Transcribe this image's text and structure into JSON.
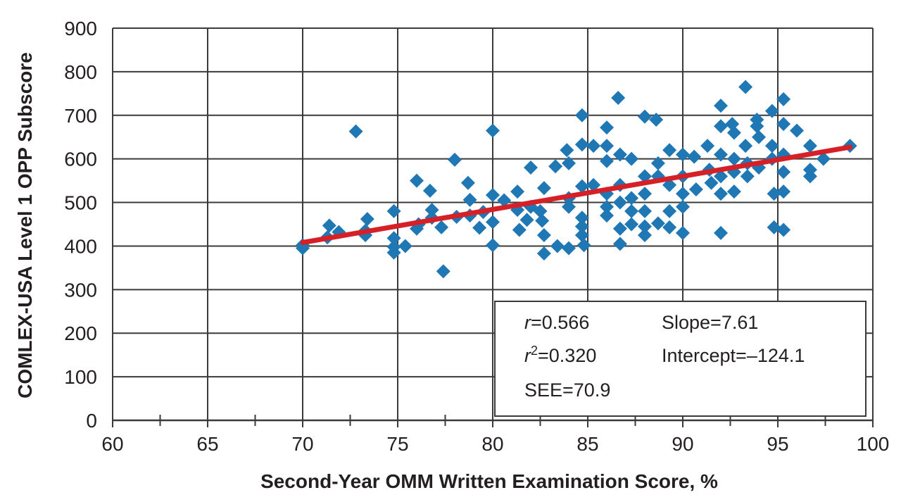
{
  "chart_data": {
    "type": "scatter",
    "title": "",
    "xlabel": "Second-Year OMM Written Examination Score, %",
    "ylabel": "COMLEX-USA Level 1 OPP Subscore",
    "xlim": [
      60,
      100
    ],
    "ylim": [
      0,
      900
    ],
    "xticks": [
      "60",
      "65",
      "70",
      "75",
      "80",
      "85",
      "90",
      "95",
      "100"
    ],
    "yticks": [
      "0",
      "100",
      "200",
      "300",
      "400",
      "500",
      "600",
      "700",
      "800",
      "900"
    ],
    "grid": true,
    "marker": "diamond",
    "colors": {
      "points": "#1f77b4",
      "trendline": "#d62027",
      "grid": "#3a3a3a"
    },
    "trendline": {
      "x": [
        70,
        98.8
      ],
      "y": [
        408,
        627
      ]
    },
    "stats_box": {
      "r_label": "r",
      "r_value": "=0.566",
      "r2_label": "r",
      "r2_sup": "2",
      "r2_value": "=0.320",
      "see": "SEE=70.9",
      "slope": "Slope=7.61",
      "intercept": "Intercept=–124.1"
    },
    "points": [
      [
        70.0,
        395
      ],
      [
        70.0,
        402
      ],
      [
        71.3,
        420
      ],
      [
        71.4,
        447
      ],
      [
        71.9,
        432
      ],
      [
        72.8,
        663
      ],
      [
        73.3,
        425
      ],
      [
        73.3,
        435
      ],
      [
        73.4,
        462
      ],
      [
        74.8,
        480
      ],
      [
        74.8,
        418
      ],
      [
        74.8,
        398
      ],
      [
        74.8,
        385
      ],
      [
        75.4,
        400
      ],
      [
        76.0,
        550
      ],
      [
        76.0,
        440
      ],
      [
        76.1,
        450
      ],
      [
        76.7,
        527
      ],
      [
        76.8,
        483
      ],
      [
        76.8,
        465
      ],
      [
        77.3,
        443
      ],
      [
        77.4,
        342
      ],
      [
        78.0,
        598
      ],
      [
        78.1,
        467
      ],
      [
        78.7,
        545
      ],
      [
        78.8,
        506
      ],
      [
        78.8,
        470
      ],
      [
        79.3,
        442
      ],
      [
        79.5,
        478
      ],
      [
        80.0,
        665
      ],
      [
        80.0,
        517
      ],
      [
        80.0,
        455
      ],
      [
        80.0,
        402
      ],
      [
        80.6,
        505
      ],
      [
        81.3,
        525
      ],
      [
        81.3,
        483
      ],
      [
        81.4,
        437
      ],
      [
        81.8,
        460
      ],
      [
        82.0,
        580
      ],
      [
        82.0,
        490
      ],
      [
        82.5,
        480
      ],
      [
        82.6,
        458
      ],
      [
        82.7,
        533
      ],
      [
        82.7,
        425
      ],
      [
        82.7,
        383
      ],
      [
        83.3,
        583
      ],
      [
        83.4,
        400
      ],
      [
        83.9,
        620
      ],
      [
        84.0,
        590
      ],
      [
        84.0,
        510
      ],
      [
        84.0,
        490
      ],
      [
        84.0,
        395
      ],
      [
        84.7,
        700
      ],
      [
        84.7,
        633
      ],
      [
        84.7,
        537
      ],
      [
        84.7,
        465
      ],
      [
        84.7,
        445
      ],
      [
        84.7,
        425
      ],
      [
        84.8,
        402
      ],
      [
        85.3,
        630
      ],
      [
        85.3,
        540
      ],
      [
        86.0,
        672
      ],
      [
        86.0,
        630
      ],
      [
        86.0,
        595
      ],
      [
        86.0,
        520
      ],
      [
        86.0,
        490
      ],
      [
        86.0,
        470
      ],
      [
        86.6,
        740
      ],
      [
        86.7,
        610
      ],
      [
        86.7,
        540
      ],
      [
        86.7,
        500
      ],
      [
        86.7,
        440
      ],
      [
        86.7,
        405
      ],
      [
        87.3,
        600
      ],
      [
        87.3,
        510
      ],
      [
        87.3,
        480
      ],
      [
        87.3,
        450
      ],
      [
        88.0,
        697
      ],
      [
        88.0,
        560
      ],
      [
        88.0,
        520
      ],
      [
        88.0,
        480
      ],
      [
        88.0,
        445
      ],
      [
        88.0,
        425
      ],
      [
        88.6,
        690
      ],
      [
        88.7,
        590
      ],
      [
        88.7,
        560
      ],
      [
        88.7,
        452
      ],
      [
        89.3,
        620
      ],
      [
        89.3,
        540
      ],
      [
        89.3,
        480
      ],
      [
        89.3,
        443
      ],
      [
        90.0,
        610
      ],
      [
        90.0,
        560
      ],
      [
        90.0,
        520
      ],
      [
        90.0,
        490
      ],
      [
        90.0,
        430
      ],
      [
        90.6,
        605
      ],
      [
        90.7,
        530
      ],
      [
        91.3,
        630
      ],
      [
        91.4,
        575
      ],
      [
        91.5,
        545
      ],
      [
        92.0,
        722
      ],
      [
        92.0,
        675
      ],
      [
        92.0,
        610
      ],
      [
        92.0,
        560
      ],
      [
        92.0,
        520
      ],
      [
        92.0,
        430
      ],
      [
        92.6,
        680
      ],
      [
        92.7,
        660
      ],
      [
        92.7,
        600
      ],
      [
        92.7,
        570
      ],
      [
        92.7,
        525
      ],
      [
        93.3,
        765
      ],
      [
        93.3,
        630
      ],
      [
        93.4,
        590
      ],
      [
        93.4,
        560
      ],
      [
        93.9,
        690
      ],
      [
        93.9,
        675
      ],
      [
        94.0,
        650
      ],
      [
        94.0,
        580
      ],
      [
        94.7,
        710
      ],
      [
        94.7,
        630
      ],
      [
        94.7,
        600
      ],
      [
        94.8,
        520
      ],
      [
        94.8,
        443
      ],
      [
        95.3,
        737
      ],
      [
        95.3,
        680
      ],
      [
        95.3,
        610
      ],
      [
        95.3,
        570
      ],
      [
        95.3,
        525
      ],
      [
        95.3,
        437
      ],
      [
        96.0,
        665
      ],
      [
        96.7,
        630
      ],
      [
        96.7,
        575
      ],
      [
        96.7,
        560
      ],
      [
        97.4,
        600
      ],
      [
        98.8,
        630
      ]
    ]
  }
}
